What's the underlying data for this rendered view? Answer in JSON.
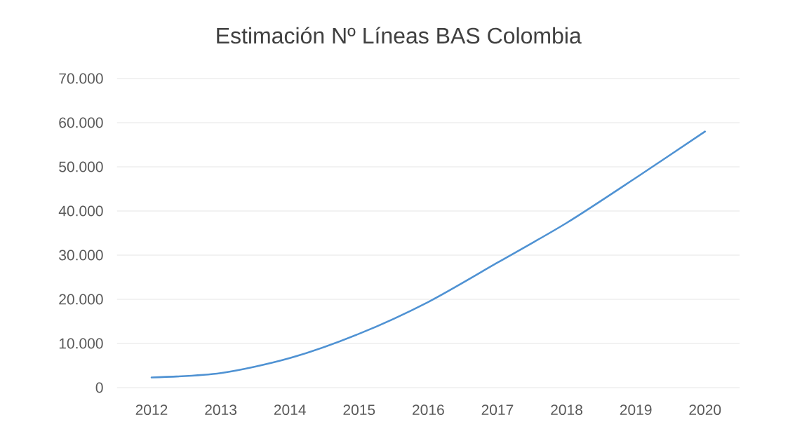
{
  "chart_data": {
    "type": "line",
    "title": "Estimación Nº Líneas BAS Colombia",
    "categories": [
      "2012",
      "2013",
      "2014",
      "2015",
      "2016",
      "2017",
      "2018",
      "2019",
      "2020"
    ],
    "series": [
      {
        "color": "#4f92d3",
        "values": [
          2300,
          3300,
          6700,
          12200,
          19400,
          28300,
          37300,
          47500,
          58000
        ]
      }
    ],
    "ylim": [
      0,
      70000
    ],
    "yticks": [
      0,
      {
        "value": 10000,
        "label": "10.000"
      },
      {
        "value": 20000,
        "label": "20.000"
      },
      {
        "value": 30000,
        "label": "30.000"
      },
      {
        "value": 40000,
        "label": "40.000"
      },
      {
        "value": 50000,
        "label": "50.000"
      },
      {
        "value": 60000,
        "label": "60.000"
      },
      {
        "value": 70000,
        "label": "70.000"
      }
    ],
    "grid": "y"
  }
}
